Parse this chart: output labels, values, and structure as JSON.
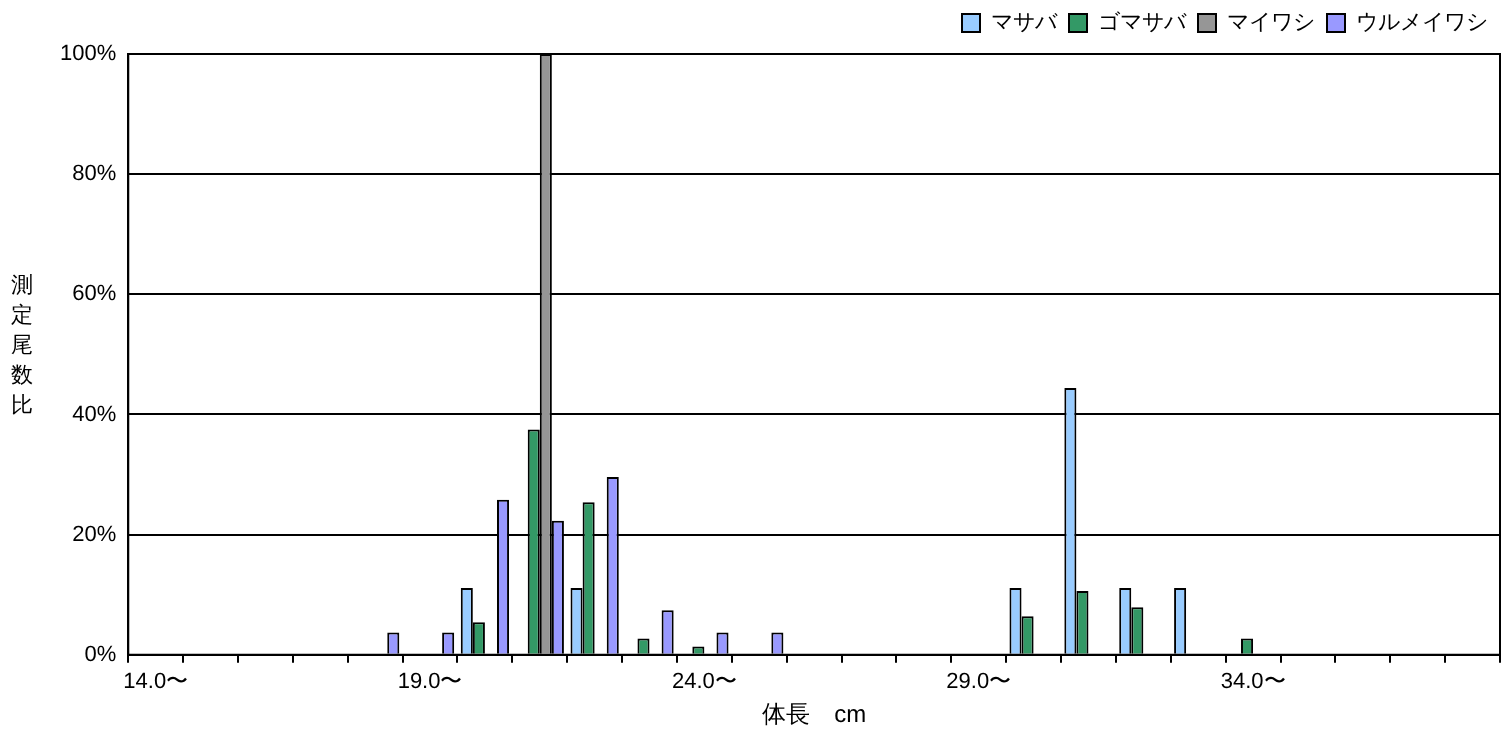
{
  "chart_data": {
    "type": "bar",
    "xlabel": "体長　cm",
    "ylabel": "測定尾数比",
    "categories": [
      "14.0〜",
      null,
      null,
      null,
      null,
      "19.0〜",
      null,
      null,
      null,
      null,
      "24.0〜",
      null,
      null,
      null,
      null,
      "29.0〜",
      null,
      null,
      null,
      null,
      "34.0〜",
      null,
      null,
      null,
      null
    ],
    "series": [
      {
        "name": "マサバ",
        "color": "#99ccff",
        "values": [
          0,
          0,
          0,
          0,
          0,
          0,
          11.1,
          0,
          11.1,
          0,
          0,
          0,
          0,
          0,
          0,
          0,
          11.1,
          44.4,
          11.1,
          11.1,
          0,
          0,
          0,
          0,
          0
        ]
      },
      {
        "name": "ゴマサバ",
        "color": "#339966",
        "values": [
          0,
          0,
          0,
          0,
          0,
          0,
          5.4,
          37.5,
          25.4,
          2.7,
          1.4,
          0,
          0,
          0,
          0,
          0,
          6.4,
          10.6,
          7.9,
          0,
          2.7,
          0,
          0,
          0,
          0
        ]
      },
      {
        "name": "マイワシ",
        "color": "#969696",
        "values": [
          0,
          0,
          0,
          0,
          0,
          0,
          0,
          100,
          0,
          0,
          0,
          0,
          0,
          0,
          0,
          0,
          0,
          0,
          0,
          0,
          0,
          0,
          0,
          0,
          0
        ]
      },
      {
        "name": "ウルメイワシ",
        "color": "#9999ff",
        "values": [
          0,
          0,
          0,
          0,
          3.7,
          3.7,
          25.8,
          22.3,
          29.6,
          7.4,
          3.7,
          3.7,
          0,
          0,
          0,
          0,
          0,
          0,
          0,
          0,
          0,
          0,
          0,
          0,
          0
        ]
      }
    ],
    "ylim": [
      0,
      100
    ],
    "yticks": [
      {
        "value": 0,
        "label": "0%"
      },
      {
        "value": 20,
        "label": "20%"
      },
      {
        "value": 40,
        "label": "40%"
      },
      {
        "value": 60,
        "label": "60%"
      },
      {
        "value": 80,
        "label": "80%"
      },
      {
        "value": 100,
        "label": "100%"
      }
    ],
    "grid": "y",
    "legend": "top right"
  }
}
